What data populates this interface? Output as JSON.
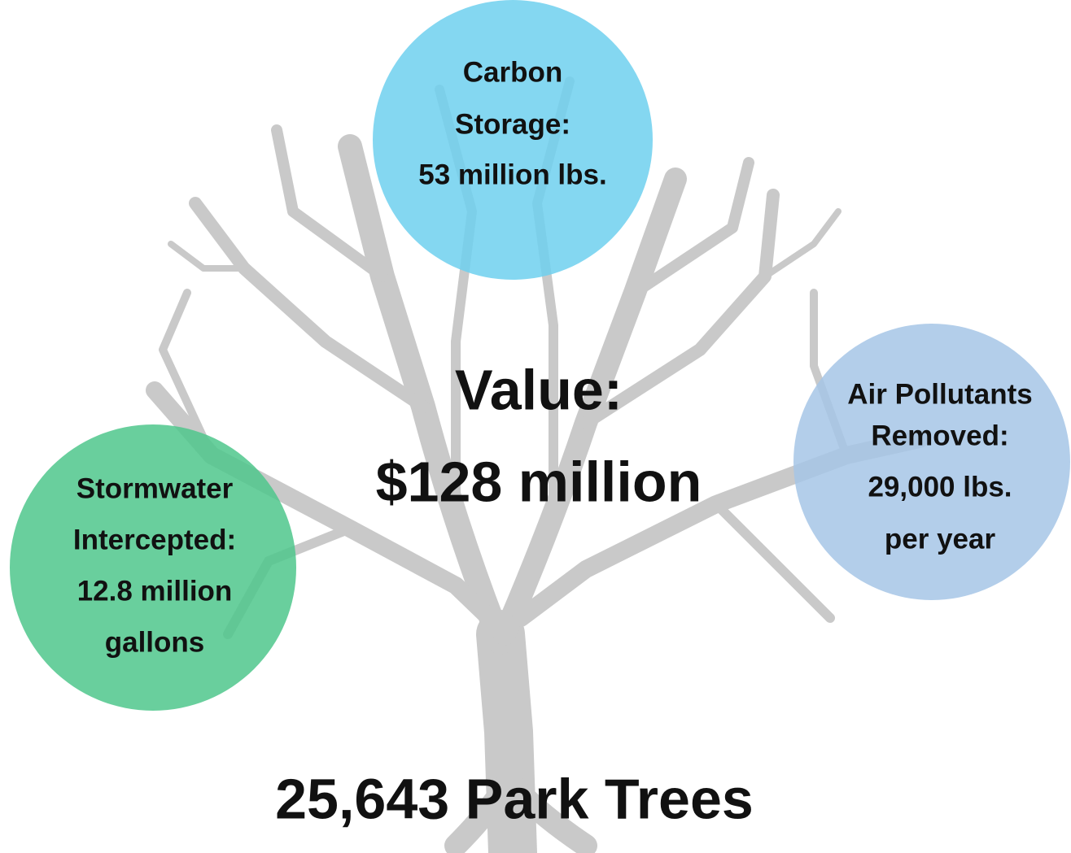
{
  "center": {
    "lines": [
      "Value:",
      "$128 million"
    ]
  },
  "circles": [
    {
      "lines": [
        "Carbon",
        "Storage:",
        "53 million lbs."
      ]
    },
    {
      "lines": [
        "Air Pollutants",
        "Removed:",
        "29,000 lbs.",
        "per year"
      ]
    },
    {
      "lines": [
        "Stormwater",
        "Intercepted:",
        "12.8 million",
        "gallons"
      ]
    }
  ],
  "footer": {
    "title": "25,643 Park Trees"
  }
}
